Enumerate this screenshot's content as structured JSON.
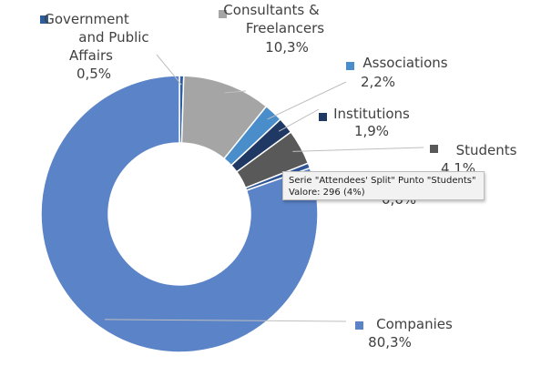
{
  "chart_data": {
    "type": "pie",
    "variant": "donut",
    "series_name": "Attendees' Split",
    "slices": [
      {
        "label": "Government and Public Affairs",
        "value_label": "0,5%",
        "percent": 0.5,
        "color": "#2e5d9e"
      },
      {
        "label": "Consultants & Freelancers",
        "value_label": "10,3%",
        "percent": 10.3,
        "color": "#a5a5a5"
      },
      {
        "label": "Associations",
        "value_label": "2,2%",
        "percent": 2.2,
        "color": "#4a8dcb"
      },
      {
        "label": "Institutions",
        "value_label": "1,9%",
        "percent": 1.9,
        "color": "#203864"
      },
      {
        "label": "Students",
        "value_label": "4,1%",
        "percent": 4.1,
        "color": "#595959"
      },
      {
        "label": "",
        "value_label": "0,6%",
        "percent": 0.6,
        "color": "#2f5597"
      },
      {
        "label": "Companies",
        "value_label": "80,3%",
        "percent": 80.3,
        "color": "#5b83c7"
      }
    ],
    "legend": "none",
    "labels": "outside with leader lines"
  },
  "tooltip": {
    "line1": "Serie \"Attendees' Split\" Punto \"Students\"",
    "line2": "Valore: 296 (4%)"
  }
}
